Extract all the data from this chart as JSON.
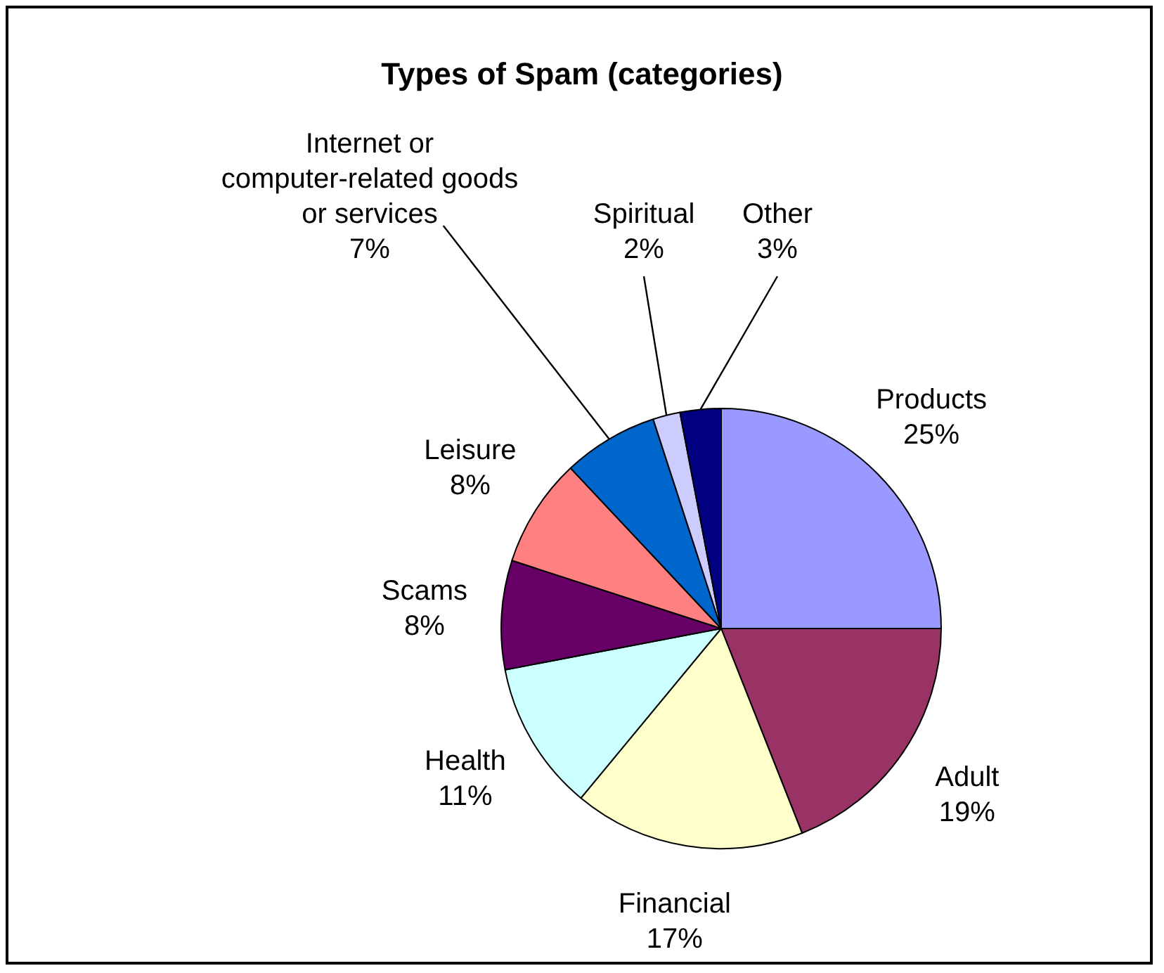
{
  "chart_data": {
    "type": "pie",
    "title": "Types of Spam (categories)",
    "categories": [
      "Products",
      "Adult",
      "Financial",
      "Health",
      "Scams",
      "Leisure",
      "Internet or computer-related goods or services",
      "Spiritual",
      "Other"
    ],
    "values": [
      25,
      19,
      17,
      11,
      8,
      8,
      7,
      2,
      3
    ],
    "value_labels": [
      "25%",
      "19%",
      "17%",
      "11%",
      "8%",
      "8%",
      "7%",
      "2%",
      "3%"
    ],
    "colors": [
      "#9999ff",
      "#993366",
      "#ffffcc",
      "#ccffff",
      "#660066",
      "#ff8080",
      "#0066cc",
      "#ccccff",
      "#000080"
    ],
    "legend": false
  }
}
